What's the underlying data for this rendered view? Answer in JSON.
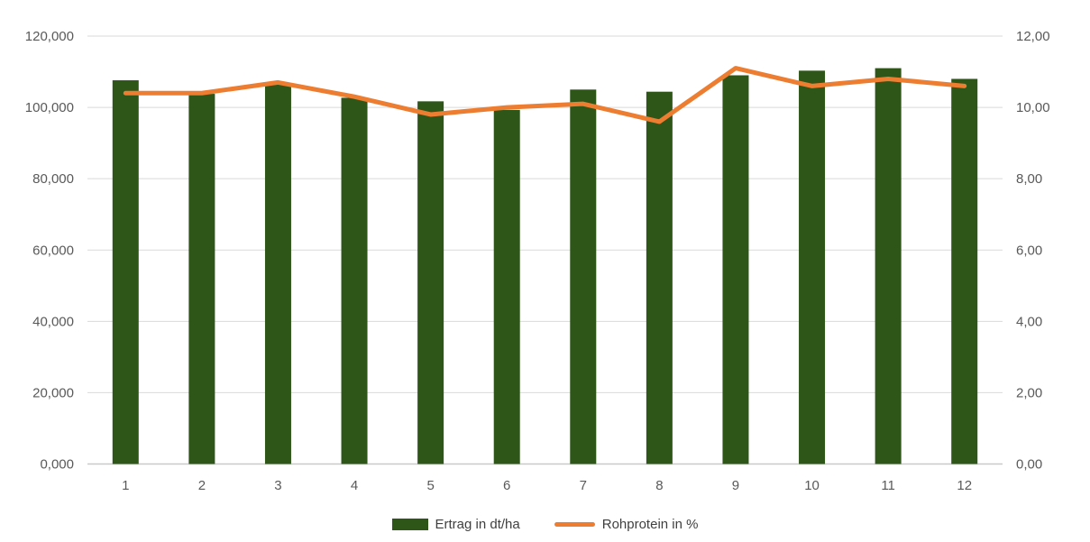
{
  "chart_data": {
    "type": "bar",
    "subtype": "combo-bar-line-dual-axis",
    "title": "",
    "categories": [
      "1",
      "2",
      "3",
      "4",
      "5",
      "6",
      "7",
      "8",
      "9",
      "10",
      "11",
      "12"
    ],
    "series": [
      {
        "name": "Ertrag in dt/ha",
        "chart": "bar",
        "axis": "left",
        "values": [
          107.6,
          103.8,
          106.5,
          102.7,
          101.7,
          99.3,
          105.0,
          104.4,
          109.0,
          110.3,
          111.0,
          108.0
        ]
      },
      {
        "name": "Rohprotein in %",
        "chart": "line",
        "axis": "right",
        "values": [
          10.4,
          10.4,
          10.7,
          10.3,
          9.8,
          10.0,
          10.1,
          9.6,
          11.1,
          10.6,
          10.8,
          10.6
        ]
      }
    ],
    "left_axis": {
      "min": 0,
      "max": 120,
      "step": 20,
      "tick_labels": [
        "0,000",
        "20,000",
        "40,000",
        "60,000",
        "80,000",
        "100,000",
        "120,000"
      ]
    },
    "right_axis": {
      "min": 0,
      "max": 12,
      "step": 2,
      "tick_labels": [
        "0,00",
        "2,00",
        "4,00",
        "6,00",
        "8,00",
        "10,00",
        "12,00"
      ]
    },
    "grid": true,
    "legend_position": "bottom"
  },
  "legend": {
    "items": [
      {
        "label": "Ertrag in dt/ha",
        "swatch": "bar"
      },
      {
        "label": "Rohprotein in %",
        "swatch": "line"
      }
    ]
  },
  "colors": {
    "bar": "#2d5618",
    "line": "#ed7d31",
    "grid": "#d9d9d9",
    "axis_line": "#c9c9c9",
    "tick_text": "#595959",
    "legend_text": "#3f3f3f",
    "background": "#ffffff"
  }
}
